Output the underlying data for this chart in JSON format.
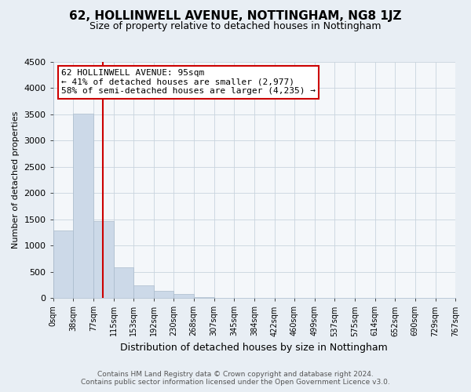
{
  "title": "62, HOLLINWELL AVENUE, NOTTINGHAM, NG8 1JZ",
  "subtitle": "Size of property relative to detached houses in Nottingham",
  "xlabel": "Distribution of detached houses by size in Nottingham",
  "ylabel": "Number of detached properties",
  "bar_edges": [
    0,
    38,
    77,
    115,
    153,
    192,
    230,
    268,
    307,
    345,
    384,
    422,
    460,
    499,
    537,
    575,
    614,
    652,
    690,
    729,
    767
  ],
  "bar_heights": [
    1280,
    3510,
    1470,
    580,
    245,
    130,
    70,
    20,
    5,
    2,
    1,
    0,
    0,
    0,
    0,
    0,
    0,
    0,
    0,
    0
  ],
  "bar_color": "#ccd9e8",
  "bar_edge_color": "#aabbcc",
  "vline_x": 95,
  "vline_color": "#cc0000",
  "ylim": [
    0,
    4500
  ],
  "yticks": [
    0,
    500,
    1000,
    1500,
    2000,
    2500,
    3000,
    3500,
    4000,
    4500
  ],
  "xtick_labels": [
    "0sqm",
    "38sqm",
    "77sqm",
    "115sqm",
    "153sqm",
    "192sqm",
    "230sqm",
    "268sqm",
    "307sqm",
    "345sqm",
    "384sqm",
    "422sqm",
    "460sqm",
    "499sqm",
    "537sqm",
    "575sqm",
    "614sqm",
    "652sqm",
    "690sqm",
    "729sqm",
    "767sqm"
  ],
  "annotation_title": "62 HOLLINWELL AVENUE: 95sqm",
  "annotation_line1": "← 41% of detached houses are smaller (2,977)",
  "annotation_line2": "58% of semi-detached houses are larger (4,235) →",
  "annotation_box_color": "#ffffff",
  "annotation_box_edge_color": "#cc0000",
  "footer_line1": "Contains HM Land Registry data © Crown copyright and database right 2024.",
  "footer_line2": "Contains public sector information licensed under the Open Government Licence v3.0.",
  "bg_color": "#e8eef4",
  "plot_bg_color": "#f4f7fa",
  "grid_color": "#c8d4de",
  "title_fontsize": 11,
  "subtitle_fontsize": 9,
  "ylabel_fontsize": 8,
  "xlabel_fontsize": 9,
  "ytick_fontsize": 8,
  "xtick_fontsize": 7
}
